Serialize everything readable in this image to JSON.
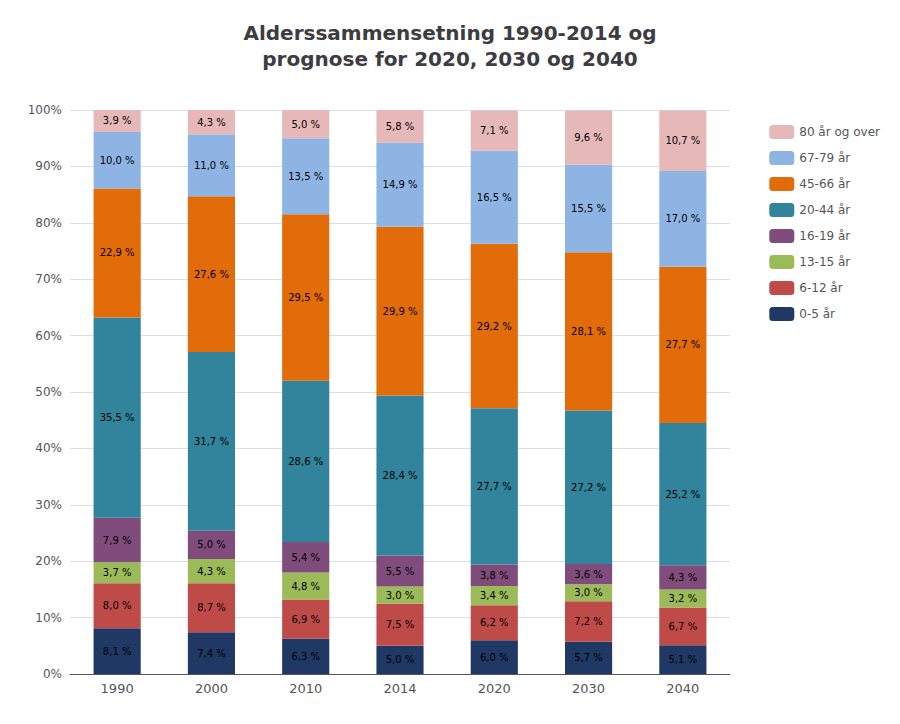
{
  "chart_data": {
    "type": "bar",
    "title": "Alderssammensetning 1990-2014 og\nprognose for 2020, 2030 og 2040",
    "categories": [
      "1990",
      "2000",
      "2010",
      "2014",
      "2020",
      "2030",
      "2040"
    ],
    "series": [
      {
        "name": "0-5 år",
        "color": "#1F3864",
        "values": [
          8.1,
          7.4,
          6.3,
          5.0,
          6.0,
          5.7,
          5.1
        ],
        "value_labels": [
          "8,1 %",
          "7,4 %",
          "6,3 %",
          "5,0 %",
          "6,0 %",
          "5,7 %",
          "5,1 %"
        ]
      },
      {
        "name": "6-12 år",
        "color": "#BE4B48",
        "values": [
          8.0,
          8.7,
          6.9,
          7.5,
          6.2,
          7.2,
          6.7
        ],
        "value_labels": [
          "8,0 %",
          "8,7 %",
          "6,9 %",
          "7,5 %",
          "6,2 %",
          "7,2 %",
          "6,7 %"
        ]
      },
      {
        "name": "13-15 år",
        "color": "#9BBB59",
        "values": [
          3.7,
          4.3,
          4.8,
          3.0,
          3.4,
          3.0,
          3.2
        ],
        "value_labels": [
          "3,7 %",
          "4,3 %",
          "4,8 %",
          "3,0 %",
          "3,4 %",
          "3,0 %",
          "3,2 %"
        ]
      },
      {
        "name": "16-19 år",
        "color": "#7F4C7B",
        "values": [
          7.9,
          5.0,
          5.4,
          5.5,
          3.8,
          3.6,
          4.3
        ],
        "value_labels": [
          "7,9 %",
          "5,0 %",
          "5,4 %",
          "5,5 %",
          "3,8 %",
          "3,6 %",
          "4,3 %"
        ]
      },
      {
        "name": "20-44 år",
        "color": "#31849B",
        "values": [
          35.5,
          31.7,
          28.6,
          28.4,
          27.7,
          27.2,
          25.2
        ],
        "value_labels": [
          "35,5 %",
          "31,7 %",
          "28,6 %",
          "28,4 %",
          "27,7 %",
          "27,2 %",
          "25,2 %"
        ]
      },
      {
        "name": "45-66 år",
        "color": "#E36C0A",
        "values": [
          22.9,
          27.6,
          29.5,
          29.9,
          29.2,
          28.1,
          27.7
        ],
        "value_labels": [
          "22,9 %",
          "27,6 %",
          "29,5 %",
          "29,9 %",
          "29,2 %",
          "28,1 %",
          "27,7 %"
        ]
      },
      {
        "name": "67-79 år",
        "color": "#8EB4E3",
        "values": [
          10.0,
          11.0,
          13.5,
          14.9,
          16.5,
          15.5,
          17.0
        ],
        "value_labels": [
          "10,0 %",
          "11,0 %",
          "13,5 %",
          "14,9 %",
          "16,5 %",
          "15,5 %",
          "17,0 %"
        ]
      },
      {
        "name": "80 år og over",
        "color": "#E6B9B8",
        "values": [
          3.9,
          4.3,
          5.0,
          5.8,
          7.1,
          9.6,
          10.7
        ],
        "value_labels": [
          "3,9 %",
          "4,3 %",
          "5,0 %",
          "5,8 %",
          "7,1 %",
          "9,6 %",
          "10,7 %"
        ]
      }
    ],
    "ylim": [
      0,
      100
    ],
    "yticks": [
      {
        "value": 0,
        "label": "0%"
      },
      {
        "value": 10,
        "label": "10%"
      },
      {
        "value": 20,
        "label": "20%"
      },
      {
        "value": 30,
        "label": "30%"
      },
      {
        "value": 40,
        "label": "40%"
      },
      {
        "value": 50,
        "label": "50%"
      },
      {
        "value": 60,
        "label": "60%"
      },
      {
        "value": 70,
        "label": "70%"
      },
      {
        "value": 80,
        "label": "80%"
      },
      {
        "value": 90,
        "label": "90%"
      },
      {
        "value": 100,
        "label": "100%"
      }
    ],
    "stacked": true,
    "data_labels": true,
    "grid": true,
    "legend": "right"
  }
}
